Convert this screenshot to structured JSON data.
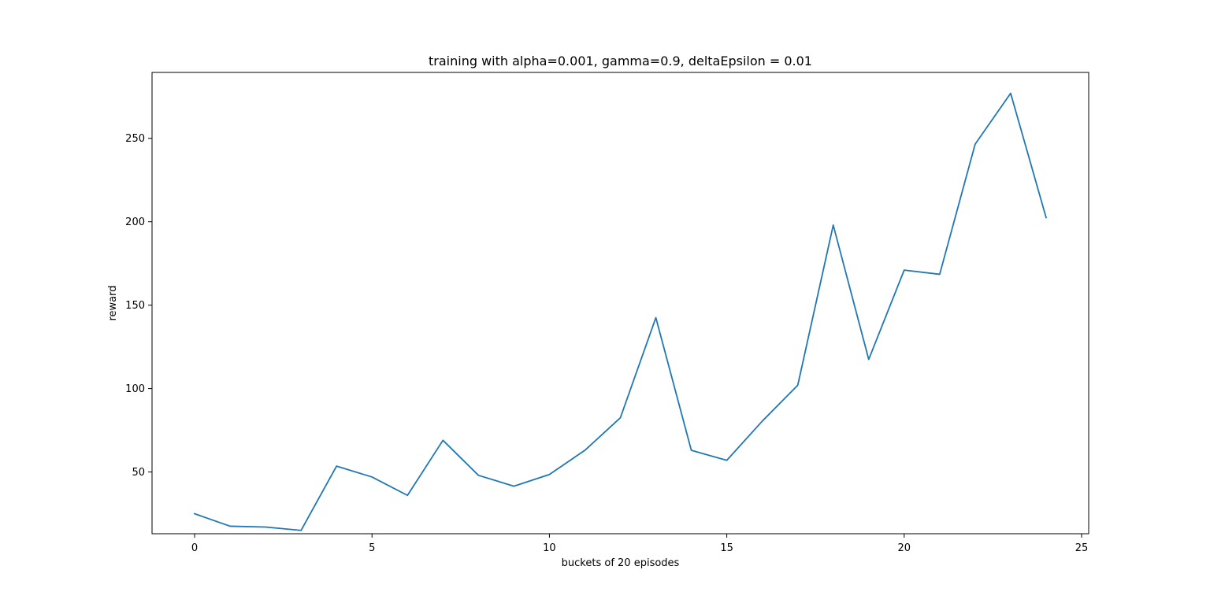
{
  "chart_data": {
    "type": "line",
    "title": "training with alpha=0.001, gamma=0.9, deltaEpsilon = 0.01",
    "xlabel": "buckets of 20 episodes",
    "ylabel": "reward",
    "xlim": [
      -1.2,
      25.2
    ],
    "ylim": [
      13.0,
      289.5
    ],
    "xticks": [
      0,
      5,
      10,
      15,
      20,
      25
    ],
    "yticks": [
      50,
      100,
      150,
      200,
      250
    ],
    "xtick_labels": [
      "0",
      "5",
      "10",
      "15",
      "20",
      "25"
    ],
    "ytick_labels": [
      "50",
      "100",
      "150",
      "200",
      "250"
    ],
    "grid": false,
    "legend": "none",
    "series": [
      {
        "color": "#1f77b4",
        "x": [
          0,
          1,
          2,
          3,
          4,
          5,
          6,
          7,
          8,
          9,
          10,
          11,
          12,
          13,
          14,
          15,
          16,
          17,
          18,
          19,
          20,
          21,
          22,
          23,
          24
        ],
        "values": [
          25,
          17.5,
          17,
          15,
          53.5,
          47,
          36,
          69,
          48,
          41.5,
          48.5,
          63,
          82.5,
          142.5,
          63,
          57,
          80.5,
          102,
          198,
          117.5,
          171,
          168.5,
          246.5,
          277,
          202.5
        ]
      }
    ]
  }
}
